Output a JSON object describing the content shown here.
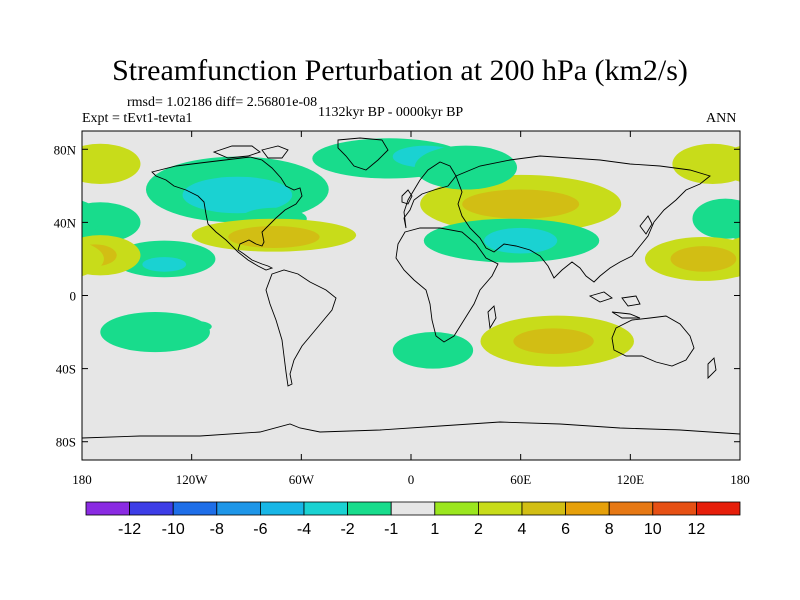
{
  "chart_data": {
    "type": "heatmap",
    "title": "Streamfunction Perturbation at 200 hPa (km2/s)",
    "stats_text": "rmsd= 1.02186 diff= 2.56801e-08",
    "experiment_text": "Expt = tEvt1-tevta1",
    "period_text": "1132kyr BP - 0000kyr BP",
    "season_text": "ANN",
    "x_ticks": [
      {
        "lon": -180,
        "label": "180"
      },
      {
        "lon": -120,
        "label": "120W"
      },
      {
        "lon": -60,
        "label": "60W"
      },
      {
        "lon": 0,
        "label": "0"
      },
      {
        "lon": 60,
        "label": "60E"
      },
      {
        "lon": 120,
        "label": "120E"
      },
      {
        "lon": 180,
        "label": "180"
      }
    ],
    "y_ticks": [
      {
        "lat": 80,
        "label": "80N"
      },
      {
        "lat": 40,
        "label": "40N"
      },
      {
        "lat": 0,
        "label": "0"
      },
      {
        "lat": -40,
        "label": "40S"
      },
      {
        "lat": -80,
        "label": "80S"
      }
    ],
    "lon_range": [
      -180,
      180
    ],
    "lat_range": [
      -90,
      90
    ],
    "colorbar": {
      "colors": [
        "#8a2be2",
        "#3d3de6",
        "#1e6ee8",
        "#1e96e8",
        "#18b6e6",
        "#1ad2d2",
        "#18dc8c",
        "#e6e6e6",
        "#9be61e",
        "#c8dc1a",
        "#d2be14",
        "#e6a00a",
        "#e67814",
        "#e65014",
        "#e61e0a"
      ],
      "labels": [
        "-12",
        "-10",
        "-8",
        "-6",
        "-4",
        "-2",
        "-1",
        "1",
        "2",
        "4",
        "6",
        "8",
        "10",
        "12"
      ]
    },
    "anomalies": [
      {
        "lon": -170,
        "lat": 72,
        "rlon": 22,
        "rlat": 11,
        "value": 2
      },
      {
        "lon": -95,
        "lat": 58,
        "rlon": 50,
        "rlat": 18,
        "value": -2
      },
      {
        "lon": -95,
        "lat": 55,
        "rlon": 30,
        "rlat": 10,
        "value": -4
      },
      {
        "lon": -75,
        "lat": 42,
        "rlon": 18,
        "rlat": 6,
        "value": -2
      },
      {
        "lon": -12,
        "lat": 75,
        "rlon": 42,
        "rlat": 11,
        "value": -2
      },
      {
        "lon": 8,
        "lat": 76,
        "rlon": 18,
        "rlat": 6,
        "value": -4
      },
      {
        "lon": -75,
        "lat": 33,
        "rlon": 45,
        "rlat": 9,
        "value": 2
      },
      {
        "lon": -75,
        "lat": 32,
        "rlon": 25,
        "rlat": 6,
        "value": 4
      },
      {
        "lon": -135,
        "lat": 20,
        "rlon": 28,
        "rlat": 10,
        "value": -2
      },
      {
        "lon": -135,
        "lat": 17,
        "rlon": 12,
        "rlat": 4,
        "value": -4
      },
      {
        "lon": -170,
        "lat": 40,
        "rlon": 22,
        "rlat": 11,
        "value": -2
      },
      {
        "lon": -170,
        "lat": 22,
        "rlon": 22,
        "rlat": 11,
        "value": 2
      },
      {
        "lon": -173,
        "lat": 22,
        "rlon": 12,
        "rlat": 6,
        "value": 4
      },
      {
        "lon": 60,
        "lat": 50,
        "rlon": 55,
        "rlat": 16,
        "value": 2
      },
      {
        "lon": 60,
        "lat": 50,
        "rlon": 32,
        "rlat": 8,
        "value": 4
      },
      {
        "lon": 55,
        "lat": 30,
        "rlon": 48,
        "rlat": 12,
        "value": -2
      },
      {
        "lon": 60,
        "lat": 30,
        "rlon": 20,
        "rlat": 7,
        "value": -4
      },
      {
        "lon": 30,
        "lat": 70,
        "rlon": 28,
        "rlat": 12,
        "value": -2
      },
      {
        "lon": 165,
        "lat": 72,
        "rlon": 22,
        "rlat": 11,
        "value": 2
      },
      {
        "lon": 172,
        "lat": 42,
        "rlon": 18,
        "rlat": 11,
        "value": -2
      },
      {
        "lon": 160,
        "lat": 20,
        "rlon": 32,
        "rlat": 12,
        "value": 2
      },
      {
        "lon": 160,
        "lat": 20,
        "rlon": 18,
        "rlat": 7,
        "value": 4
      },
      {
        "lon": -140,
        "lat": -20,
        "rlon": 30,
        "rlat": 11,
        "value": -2
      },
      {
        "lon": -117,
        "lat": -17,
        "rlon": 8,
        "rlat": 3,
        "value": -2
      },
      {
        "lon": 12,
        "lat": -30,
        "rlon": 22,
        "rlat": 10,
        "value": -2
      },
      {
        "lon": 80,
        "lat": -25,
        "rlon": 42,
        "rlat": 14,
        "value": 2
      },
      {
        "lon": 78,
        "lat": -25,
        "rlon": 22,
        "rlat": 7,
        "value": 4
      }
    ]
  }
}
